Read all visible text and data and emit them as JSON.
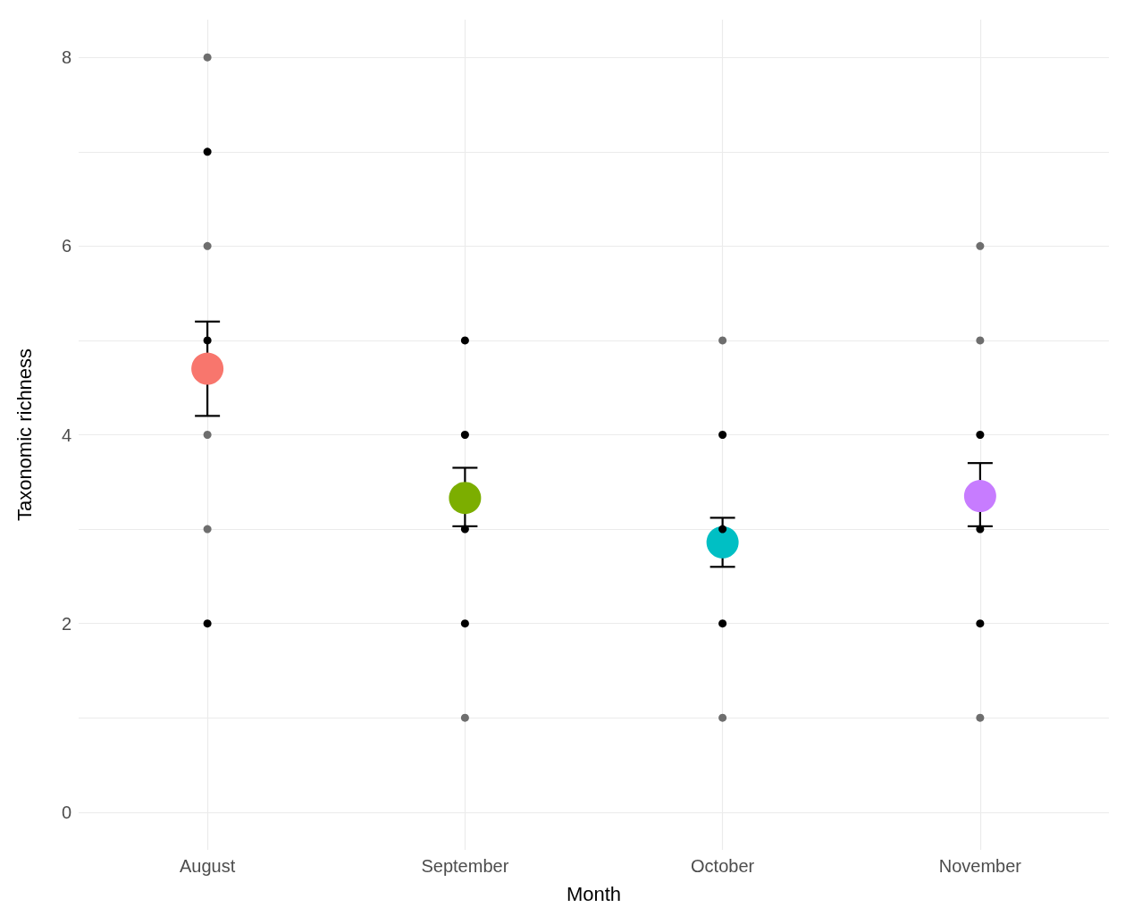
{
  "chart_data": {
    "type": "scatter",
    "xlabel": "Month",
    "ylabel": "Taxonomic richness",
    "categories": [
      "August",
      "September",
      "October",
      "November"
    ],
    "ylim": [
      -0.4,
      8.4
    ],
    "yticks": [
      0,
      {
        "value": 1,
        "label": null
      },
      2,
      {
        "value": 3,
        "label": null
      },
      4,
      {
        "value": 5,
        "label": null
      },
      6,
      {
        "value": 7,
        "label": null
      },
      8
    ],
    "grid": true,
    "marker": "circle",
    "series": [
      {
        "x": [
          "August",
          "August",
          "August",
          "August",
          "August",
          "August",
          "August",
          "September",
          "September",
          "September",
          "September",
          "September",
          "October",
          "October",
          "October",
          "October",
          "October",
          "November",
          "November",
          "November",
          "November",
          "November",
          "November"
        ],
        "values": [
          2,
          3,
          4,
          5,
          6,
          7,
          8,
          1,
          2,
          3,
          4,
          5,
          1,
          2,
          3,
          4,
          5,
          1,
          2,
          3,
          4,
          5,
          6
        ],
        "colors": [
          "#000000",
          "#6e6e6e",
          "#6e6e6e",
          "#000000",
          "#6e6e6e",
          "#000000",
          "#6e6e6e",
          "#6e6e6e",
          "#000000",
          "#000000",
          "#000000",
          "#000000",
          "#6e6e6e",
          "#000000",
          "#000000",
          "#000000",
          "#6e6e6e",
          "#6e6e6e",
          "#000000",
          "#000000",
          "#000000",
          "#6e6e6e",
          "#6e6e6e"
        ]
      },
      {
        "x": [
          "August",
          "September",
          "October",
          "November"
        ],
        "values": [
          4.7,
          3.33,
          2.86,
          3.35
        ],
        "colors": [
          "#f8766d",
          "#7cae00",
          "#00bfc4",
          "#c77cff"
        ],
        "errors": [
          [
            4.2,
            5.2
          ],
          [
            3.03,
            3.65
          ],
          [
            2.6,
            3.12
          ],
          [
            3.03,
            3.7
          ]
        ]
      }
    ]
  }
}
